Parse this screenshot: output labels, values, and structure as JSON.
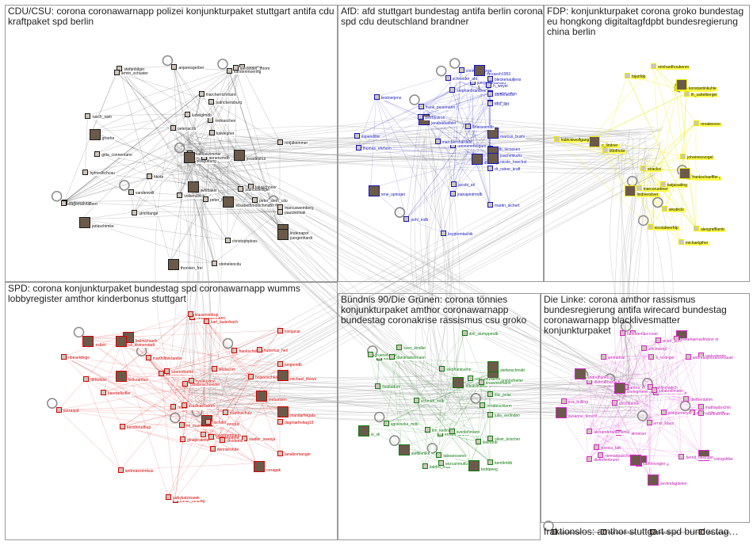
{
  "groups": [
    {
      "id": "cdu",
      "title": "CDU/CSU: corona coronawarnapp polizei konjunkturpaket stuttgart antifa cdu\nkraftpaket spd berlin",
      "color": "#1a1a1a",
      "label_bg": "#ffffff",
      "label_color": "#111111",
      "labels": [
        "janaschimke",
        "anjareisgerber",
        "derlenzmdb",
        "marcusweinberg",
        "ronjakemmer",
        "jwhittaker",
        "patrickensburg",
        "stefanbilger",
        "tatjaschnoor",
        "rednaschen",
        "lindenapot",
        "arnseifen",
        "hpfriedrichcau",
        "peterjacob",
        "ludwiglmdb",
        "juergenhardt",
        "mathiaszimmer",
        "christophploss",
        "peter_stein_cdu",
        "andreasjung",
        "groehe",
        "marcherrichmann",
        "volkerullrich",
        "patrickdelliger",
        "vandenwilt",
        "oliviguttung",
        "steineleocdu",
        "ulrichlange",
        "armin_schuster",
        "peter_beyer",
        "jovadephul",
        "kaiwegner",
        "hhirte",
        "rasch_sam",
        "stagemannalbert",
        "elisabethmotschmann",
        "gitta_connemann",
        "alexander_throm",
        "karstenmoering",
        "pauiziemiak",
        "thorsten_frei"
      ]
    },
    {
      "id": "afd",
      "title": "AfD: afd stuttgart bundestag antifa berlin corona\nspd cdu deutschland brandner",
      "color": "#1515b8",
      "label_bg": "#ffffff",
      "label_color": "#1515b8",
      "labels": [
        "janabaduebler",
        "ksyptomtachik",
        "martin_sichert",
        "thomas_ehrhorn",
        "gerold_otten",
        "dirmaspeiwin",
        "steffenkotre",
        "juergenbraunafd",
        "corinnamiazga",
        "joanapiotrmdb",
        "rene_springer",
        "petrbystron",
        "schneider_afd",
        "mdb_lucassen",
        "h_weyel",
        "mrcasch1953",
        "uteilsc",
        "bleckenaufjens",
        "stephanbrandner",
        "espendiller",
        "joachimkuhs",
        "ttno_afd",
        "udohemmelgarn",
        "kestnerjens",
        "frank_pasemann",
        "marcus_bushi",
        "drtiesesmdb",
        "jacobi_arl",
        "marcbernhardafd",
        "pohl_mdb",
        "nicole_hoechst",
        "dr_rainer_kraft"
      ]
    },
    {
      "id": "fdp",
      "title": "FDP: konjunkturpaket corona groko bundestag\neu hongkong digitaltagfdpbt bundesregierung\nchina berlin",
      "color": "#e8e800",
      "label_bg": "#ffff4a",
      "label_color": "#111111",
      "labels": [
        "c_lindner",
        "marcobuschmann",
        "alexgrafflamb",
        "nicolabeerfdp",
        "johannesvogel",
        "konstantinkuhle",
        "bijanfdp",
        "tthomasmachie",
        "michaelgthei",
        "strackzi",
        "lindneroliver",
        "kubickiwolfgang",
        "marcoruebner",
        "katjasuding",
        "wkubicki",
        "frankschaeffler",
        "th_sattelberger",
        "ottofricke",
        "renateesxo",
        "reinhardhoubenm"
      ]
    },
    {
      "id": "spd",
      "title": "SPD: corona konjunkturpaket bundestag spd coronawarnapp wumms\nlobbyregister amthor kinderbonus stuttgart",
      "color": "#d40000",
      "label_bg": "#ffffff",
      "label_color": "#d40000",
      "labels": [
        "mandarfeigata",
        "nysleuxtino",
        "adrossmann",
        "thomasoppermann",
        "lothar_binding",
        "heilmichaelh",
        "sebasthartmann",
        "nbeseldingo",
        "dirkwiese",
        "langemdb",
        "niebansen",
        "marthildekrambe",
        "lanabinmanger",
        "lekdacom",
        "mi_muentefering",
        "esken",
        "martinrosemann",
        "frankschwabe",
        "karl_lauterbach",
        "stadler_swenja",
        "helkoamasi",
        "bojanoschkakarlen",
        "ginapiratetta",
        "hubertus_heil",
        "ssaskiaessiken",
        "aydanoezoguz",
        "dagmarfreitag13",
        "baerbelkofler",
        "dennisrohde",
        "kerstinrudhup",
        "uli_kleinerstadt",
        "soerenbartol",
        "andreasnrimkus",
        "martinschulz",
        "sionjacar",
        "ceragak",
        "rischdel",
        "sigmargabriel",
        "oezdemir",
        "gabykatzmarek",
        "michael_thews",
        "klausmindrup",
        "carstenschneider",
        "pizzaspd"
      ]
    },
    {
      "id": "gruene",
      "title": "Bündnis 90/Die Grünen: corona tönnies\nkonjunkturpaket amthor coronawarnapp\nbundestag coronakrise rassismus csu groko",
      "color": "#0e7a0e",
      "label_bg": "#ffffff",
      "label_color": "#0e7a0e",
      "labels": [
        "toninhofreiter",
        "kattjebeau",
        "katdro_mdb",
        "schmidt_mdb",
        "agnieszka_mdb",
        "steffilemke",
        "oezcanmutlu",
        "erhard_grundl",
        "cem_oezdemir",
        "gruenebeate",
        "w_sk",
        "kemfertdb",
        "dirk_stumppmdb",
        "tabearossner",
        "lisabadum",
        "teddpeeg",
        "oliver_krischer",
        "tim_kellmann",
        "kleindrdr",
        "svenlehmann",
        "stefanschmidt",
        "filiz_polat",
        "renateschlerm",
        "daniellakermann",
        "julia_verlinden",
        "tobiaslindner",
        "stephankuehn",
        "sven_kindler",
        "tinawinklmann"
      ]
    },
    {
      "id": "linke",
      "title": "Die Linke: corona amthor rassismus\nbundesregierung antifa wirecard bundestag\ncoronawarnapp blacklivesmatter konjunkturpaket",
      "color": "#d626c8",
      "label_bg": "#ffffff",
      "label_color": "#c218b4",
      "labels": [
        "sylviagabelmann",
        "petra_sitte_mdb",
        "ulrichweigl",
        "amiradsai",
        "b_rexinger",
        "nicolegohlke",
        "dietmarbartsch",
        "andi_moser",
        "ulrichtuerke",
        "jankortegrin",
        "sevimdagdelen",
        "bernd_riexinger",
        "martinaronner",
        "amira_m_ali",
        "eva_bulling",
        "nicole_linke",
        "ernst_klaus",
        "heikehaenselmann",
        "alexanderulrich",
        "pascalmeiser",
        "susanne_ferschl",
        "niemadpaschaal",
        "dietiefenbrunn",
        "victor_perli",
        "andreasjmoranzenauer",
        "axelegmeier",
        "pinkpurmeyer",
        "zaklinmadich",
        "jessica_tatti",
        "fabiodemasi",
        "andrejhunko",
        "mathiasbochin",
        "dietherdahm",
        "alexanderadamsmut",
        "juttakrellmann",
        "kathrinvogler"
      ]
    },
    {
      "id": "fraktionslos",
      "title": "fraktionslos: amthor stuttgart spd bundestag…",
      "color": "#222222",
      "label_bg": "#ffffff",
      "label_color": "#222222",
      "labels": [
        "marcobulow",
        "mierasmotmars",
        "beakabraun",
        "uwe_kamann"
      ]
    }
  ]
}
